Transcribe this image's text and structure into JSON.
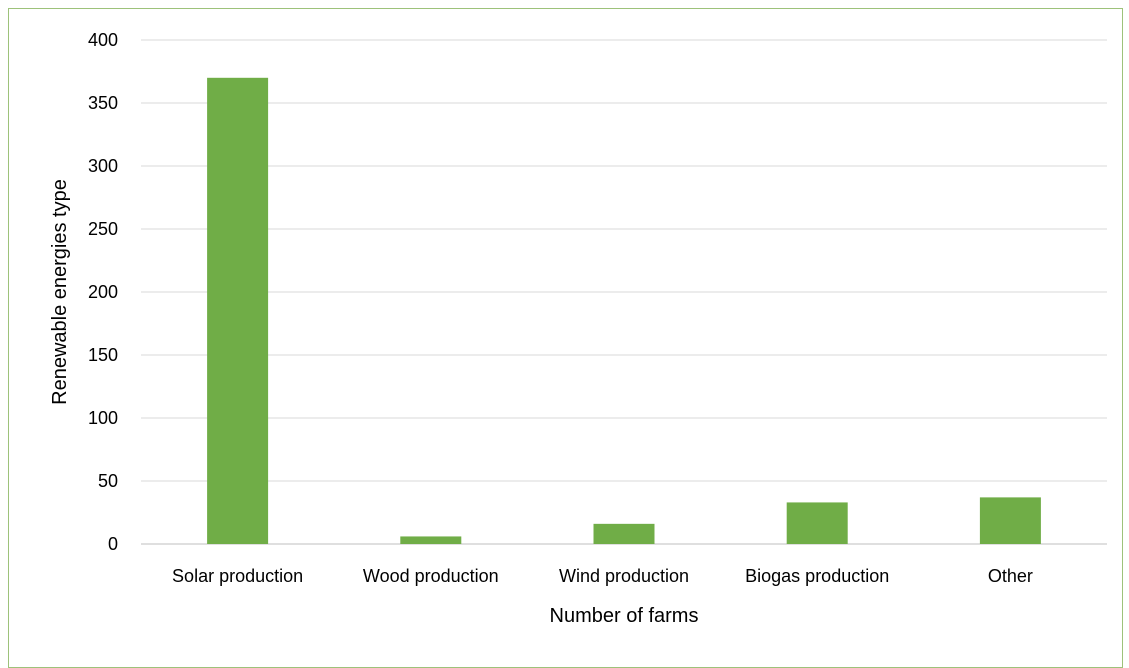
{
  "chart_data": {
    "type": "bar",
    "title": "",
    "xlabel": "Number of farms",
    "ylabel": "Renewable energies type",
    "categories": [
      "Solar production",
      "Wood production",
      "Wind production",
      "Biogas production",
      "Other"
    ],
    "values": [
      370,
      6,
      16,
      33,
      37
    ],
    "ylim": [
      0,
      400
    ],
    "yticks": [
      "0",
      "50",
      "100",
      "150",
      "200",
      "250",
      "300",
      "350",
      "400"
    ],
    "grid": true,
    "legend": "none",
    "colors": {
      "bar": "#70ad47",
      "grid": "#d9d9d9",
      "axis": "#bfbfbf",
      "frame": "#9dc27a"
    }
  }
}
